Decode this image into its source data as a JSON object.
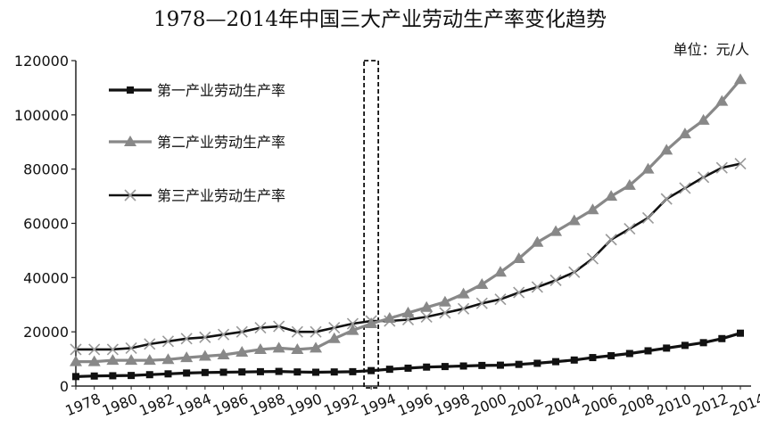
{
  "title": "1978—2014年中国三大产业劳动生产率变化趋势",
  "unit": "单位：元/人",
  "colors": {
    "primary": "#111111",
    "secondary": "#888888",
    "tertiary": "#111111",
    "tertiary_marker": "#999999",
    "highlight_box": "#111111"
  },
  "chart_data": {
    "type": "line",
    "title": "1978—2014年中国三大产业劳动生产率变化趋势",
    "unit": "单位：元/人",
    "ylim": [
      0,
      120000
    ],
    "yticks": [
      0,
      20000,
      40000,
      60000,
      80000,
      100000,
      120000
    ],
    "ytick_labels": [
      "0",
      "20000",
      "40000",
      "60000",
      "80000",
      "100000",
      "120000"
    ],
    "xlim": [
      1978,
      2014
    ],
    "xtick_labels": [
      "1978",
      "1980",
      "1982",
      "1984",
      "1986",
      "1988",
      "1990",
      "1992",
      "1994",
      "1996",
      "1998",
      "2000",
      "2002",
      "2004",
      "2006",
      "2008",
      "2010",
      "2012",
      "2014"
    ],
    "grid": false,
    "legend_position": "top-left",
    "highlight_year": 1994,
    "x": [
      1978,
      1979,
      1980,
      1981,
      1982,
      1983,
      1984,
      1985,
      1986,
      1987,
      1988,
      1989,
      1990,
      1991,
      1992,
      1993,
      1994,
      1995,
      1996,
      1997,
      1998,
      1999,
      2000,
      2001,
      2002,
      2003,
      2004,
      2005,
      2006,
      2007,
      2008,
      2009,
      2010,
      2011,
      2012,
      2013,
      2014
    ],
    "series": [
      {
        "name": "第一产业劳动生产率",
        "marker": "square",
        "values": [
          3500,
          3700,
          3800,
          3900,
          4200,
          4500,
          4800,
          5000,
          5100,
          5200,
          5300,
          5400,
          5200,
          5100,
          5200,
          5300,
          5700,
          6200,
          6600,
          7000,
          7200,
          7400,
          7600,
          7700,
          8000,
          8400,
          9000,
          9600,
          10500,
          11200,
          12000,
          13000,
          14000,
          15000,
          16000,
          17500,
          19500
        ]
      },
      {
        "name": "第二产业劳动生产率",
        "marker": "triangle",
        "values": [
          9000,
          9000,
          9500,
          9500,
          9500,
          9800,
          10500,
          11000,
          11500,
          12500,
          13500,
          14000,
          13500,
          14000,
          17500,
          20500,
          23000,
          25000,
          27000,
          29000,
          31000,
          34000,
          37500,
          42000,
          47000,
          53000,
          57000,
          61000,
          65000,
          70000,
          74000,
          80000,
          87000,
          93000,
          98000,
          105000,
          113000
        ]
      },
      {
        "name": "第三产业劳动生产率",
        "marker": "x",
        "values": [
          13500,
          13500,
          13500,
          14000,
          15500,
          16500,
          17500,
          18000,
          19000,
          20000,
          21500,
          22000,
          20000,
          20000,
          21500,
          23000,
          24000,
          24000,
          24500,
          25500,
          27000,
          28500,
          30500,
          32000,
          34500,
          36500,
          39000,
          42000,
          47000,
          54000,
          58000,
          62000,
          69000,
          73000,
          77000,
          80500,
          82000
        ]
      }
    ]
  }
}
